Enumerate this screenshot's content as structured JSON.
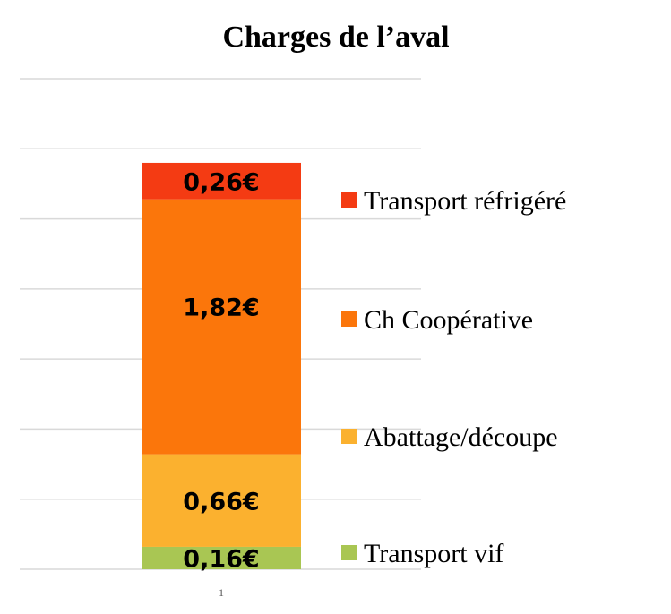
{
  "chart_data": {
    "type": "bar",
    "stacked": true,
    "title": "Charges de l’aval",
    "categories": [
      "1"
    ],
    "series": [
      {
        "name": "Transport vif",
        "values": [
          0.16
        ],
        "label": "0,16€",
        "color": "#a9c653"
      },
      {
        "name": "Abattage/découpe",
        "values": [
          0.66
        ],
        "label": "0,66€",
        "color": "#fbb12f"
      },
      {
        "name": "Ch Coopérative",
        "values": [
          1.82
        ],
        "label": "1,82€",
        "color": "#fb760b"
      },
      {
        "name": "Transport réfrigéré",
        "values": [
          0.26
        ],
        "label": "0,26€",
        "color": "#f43b13"
      }
    ],
    "ylim": [
      0,
      3.5
    ],
    "grid": true,
    "legend": "right"
  }
}
